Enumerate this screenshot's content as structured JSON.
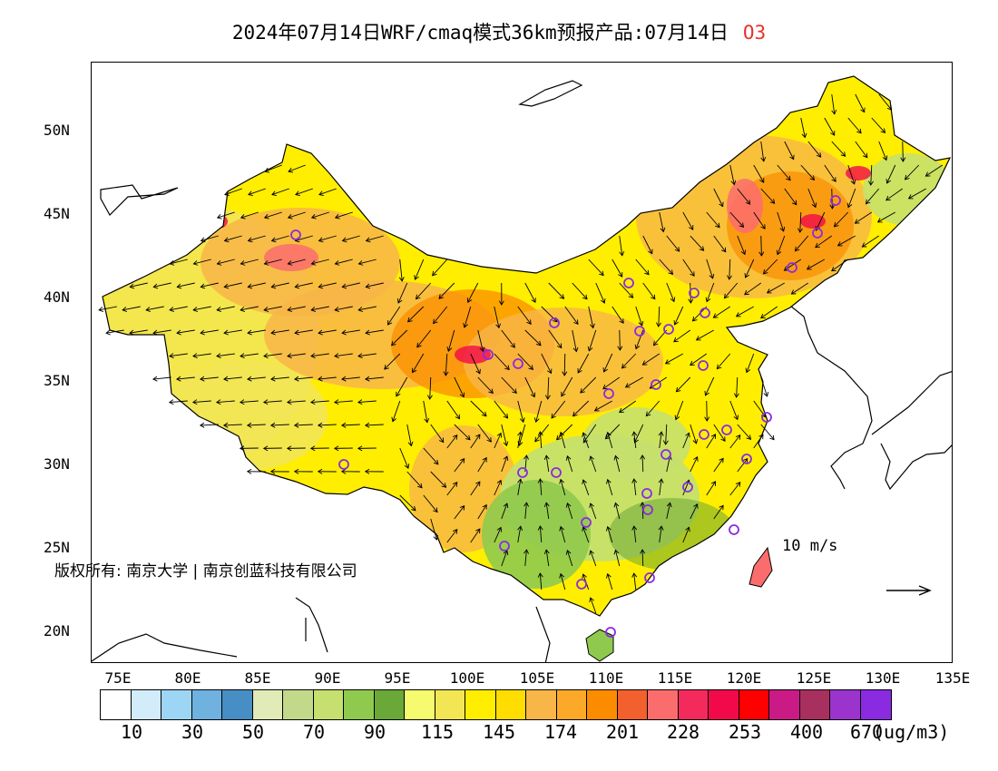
{
  "title": {
    "main": "2024年07月14日WRF/cmaq模式36km预报产品:07月14日",
    "variable": "O3"
  },
  "axes": {
    "lat_labels": [
      "50N",
      "45N",
      "40N",
      "35N",
      "30N",
      "25N",
      "20N"
    ],
    "lon_labels": [
      "75E",
      "80E",
      "85E",
      "90E",
      "95E",
      "100E",
      "105E",
      "110E",
      "115E",
      "120E",
      "125E",
      "130E",
      "135E"
    ]
  },
  "copyright": "版权所有: 南京大学 | 南京创蓝科技有限公司",
  "wind_scale": {
    "label": "10 m/s"
  },
  "legend": {
    "labels": [
      "10",
      "30",
      "50",
      "70",
      "90",
      "115",
      "145",
      "174",
      "201",
      "228",
      "253",
      "400",
      "670"
    ],
    "unit": "(ug/m3)",
    "colors": [
      "#ffffff",
      "#d2ecfa",
      "#9dd6f5",
      "#6fb1df",
      "#478ec4",
      "#e0ebb8",
      "#c2d98a",
      "#c5e06e",
      "#8fca4e",
      "#6aa837",
      "#f5fa6e",
      "#f3e655",
      "#ffee00",
      "#ffdd00",
      "#f8b548",
      "#fca92a",
      "#fb8c00",
      "#f2602e",
      "#fb6d6d",
      "#f52a5c",
      "#f2094a",
      "#ff0000",
      "#ca1a85",
      "#a8305e",
      "#9b34cc",
      "#8a2be2"
    ]
  },
  "map_colors": {
    "ocean": "#ffffff",
    "coast": "#000000",
    "base": "#ffee00",
    "west": "#f3e655",
    "orange": "#f8b548",
    "deep_orange": "#fb8c00",
    "red": "#fb6d6d",
    "hot": "#f2094a",
    "green": "#c5e06e",
    "dark_green": "#6aa837",
    "city": "#8a2be2"
  }
}
